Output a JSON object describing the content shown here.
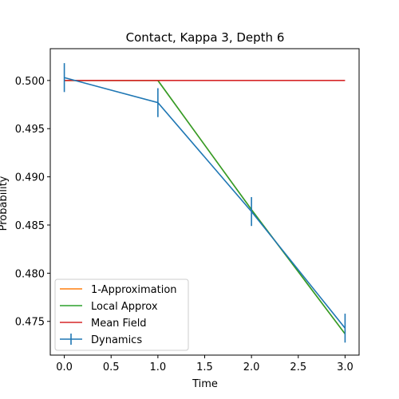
{
  "chart_data": {
    "type": "line",
    "title": "Contact, Kappa 3, Depth 6",
    "xlabel": "Time",
    "ylabel": "Probability",
    "xlim": [
      -0.15,
      3.15
    ],
    "ylim": [
      0.4715,
      0.5033
    ],
    "x_ticks": [
      0.0,
      0.5,
      1.0,
      1.5,
      2.0,
      2.5,
      3.0
    ],
    "x_tick_labels": [
      "0.0",
      "0.5",
      "1.0",
      "1.5",
      "2.0",
      "2.5",
      "3.0"
    ],
    "y_ticks": [
      0.475,
      0.48,
      0.485,
      0.49,
      0.495,
      0.5
    ],
    "y_tick_labels": [
      "0.475",
      "0.480",
      "0.485",
      "0.490",
      "0.495",
      "0.500"
    ],
    "grid": false,
    "legend_position": "lower-left",
    "series": [
      {
        "name": "1-Approximation",
        "color": "#ff7f0e",
        "x": [
          0,
          1,
          2,
          3
        ],
        "y": [
          0.5,
          0.5,
          0.4866,
          0.4737
        ]
      },
      {
        "name": "Local Approx",
        "color": "#2ca02c",
        "x": [
          0,
          1,
          2,
          3
        ],
        "y": [
          0.5,
          0.5,
          0.4866,
          0.4737
        ]
      },
      {
        "name": "Mean Field",
        "color": "#d62728",
        "x": [
          0,
          1,
          2,
          3
        ],
        "y": [
          0.5,
          0.5,
          0.5,
          0.5
        ]
      },
      {
        "name": "Dynamics",
        "color": "#1f77b4",
        "x": [
          0,
          1,
          2,
          3
        ],
        "y": [
          0.5003,
          0.4977,
          0.4864,
          0.4743
        ],
        "yerr": [
          0.0015,
          0.0015,
          0.0015,
          0.0015
        ]
      }
    ]
  }
}
